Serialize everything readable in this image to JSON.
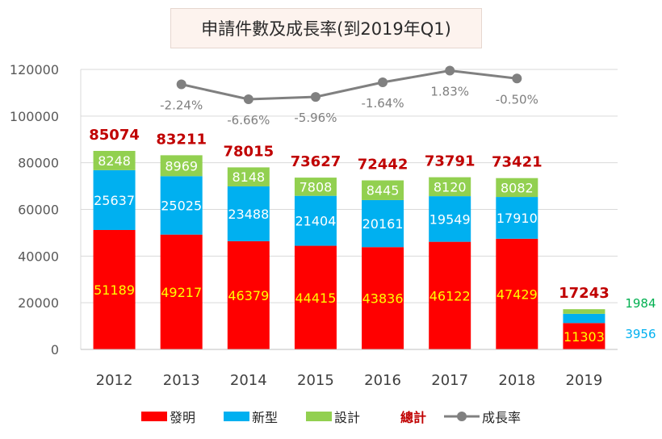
{
  "chart_data": {
    "type": "bar",
    "stacked": true,
    "title": "申請件數及成長率(到2019年Q1)",
    "categories": [
      "2012",
      "2013",
      "2014",
      "2015",
      "2016",
      "2017",
      "2018",
      "2019"
    ],
    "ylim": [
      0,
      120000
    ],
    "yticks": [
      "0",
      "20000",
      "40000",
      "60000",
      "80000",
      "100000",
      "120000"
    ],
    "ytick_values": [
      0,
      20000,
      40000,
      60000,
      80000,
      100000,
      120000
    ],
    "grid": true,
    "legend_position": "bottom",
    "series": [
      {
        "name": "發明",
        "values": [
          51189,
          49217,
          46379,
          44415,
          43836,
          46122,
          47429,
          11303
        ],
        "color": "#ff0000",
        "label_color": "#ffff00"
      },
      {
        "name": "新型",
        "values": [
          25637,
          25025,
          23488,
          21404,
          20161,
          19549,
          17910,
          3956
        ],
        "color": "#00b0f0",
        "label_color": "#ffffff"
      },
      {
        "name": "設計",
        "values": [
          8248,
          8969,
          8148,
          7808,
          8445,
          8120,
          8082,
          1984
        ],
        "color": "#92d050",
        "label_color": "#ffffff"
      }
    ],
    "totals": {
      "name": "總計",
      "values": [
        85074,
        83211,
        78015,
        73627,
        72442,
        73791,
        73421,
        17243
      ],
      "color": "#c00000"
    },
    "growth": {
      "name": "成長率",
      "values": [
        null,
        -2.24,
        -6.66,
        -5.96,
        -1.64,
        1.83,
        -0.5,
        null
      ],
      "labels": [
        "",
        "-2.24%",
        "-6.66%",
        "-5.96%",
        "-1.64%",
        "1.83%",
        "-0.50%",
        ""
      ],
      "color": "#808080"
    }
  }
}
